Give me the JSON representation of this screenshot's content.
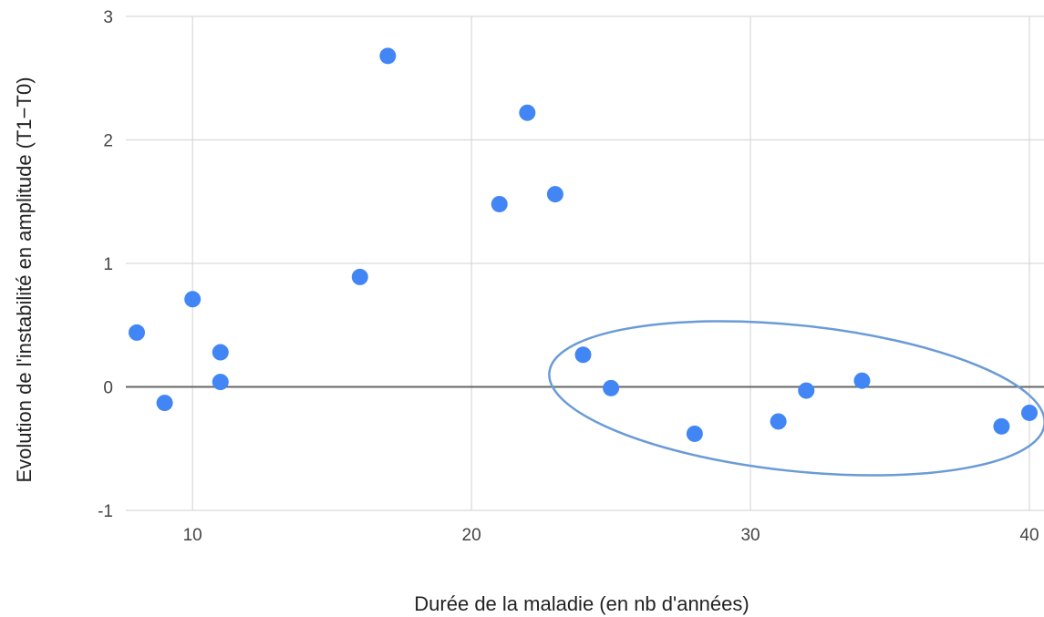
{
  "chart_data": {
    "type": "scatter",
    "title": "",
    "xlabel": "Durée de la maladie (en nb d'années)",
    "ylabel": "Evolution de l'instabilité en amplitude (T1−T0)",
    "xlim": [
      8,
      40
    ],
    "ylim": [
      -1,
      3
    ],
    "xticks": [
      {
        "value": 10,
        "label": "10"
      },
      {
        "value": 20,
        "label": "20"
      },
      {
        "value": 30,
        "label": "30"
      },
      {
        "value": 40,
        "label": "40"
      }
    ],
    "yticks": [
      {
        "value": -1,
        "label": "-1"
      },
      {
        "value": 0,
        "label": "0"
      },
      {
        "value": 1,
        "label": "1"
      },
      {
        "value": 2,
        "label": "2"
      },
      {
        "value": 3,
        "label": "3"
      }
    ],
    "grid": true,
    "legend": "none",
    "point_color": "#4285f4",
    "grid_color": "#d9d9d9",
    "zero_line_color": "#666666",
    "annotation": {
      "type": "ellipse",
      "color": "#6a9bd6",
      "encloses_x_range": [
        24,
        40
      ]
    },
    "series": [
      {
        "points": [
          {
            "x": 8,
            "y": 0.44
          },
          {
            "x": 9,
            "y": -0.13
          },
          {
            "x": 10,
            "y": 0.71
          },
          {
            "x": 11,
            "y": 0.28
          },
          {
            "x": 11,
            "y": 0.04
          },
          {
            "x": 16,
            "y": 0.89
          },
          {
            "x": 17,
            "y": 2.68
          },
          {
            "x": 21,
            "y": 1.48
          },
          {
            "x": 22,
            "y": 2.22
          },
          {
            "x": 23,
            "y": 1.56
          },
          {
            "x": 24,
            "y": 0.26
          },
          {
            "x": 25,
            "y": -0.01
          },
          {
            "x": 28,
            "y": -0.38
          },
          {
            "x": 31,
            "y": -0.28
          },
          {
            "x": 32,
            "y": -0.03
          },
          {
            "x": 34,
            "y": 0.05
          },
          {
            "x": 39,
            "y": -0.32
          },
          {
            "x": 40,
            "y": -0.21
          }
        ]
      }
    ]
  }
}
